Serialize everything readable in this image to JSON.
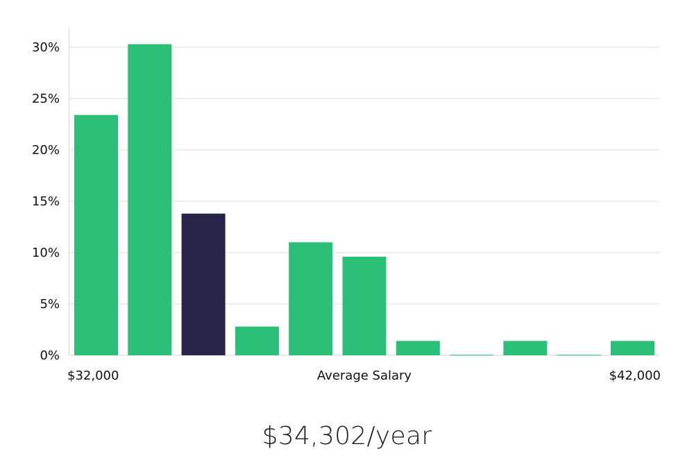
{
  "chart_data": {
    "type": "bar",
    "xlabel": "Average Salary",
    "x_range_labels": [
      "$32,000",
      "$42,000"
    ],
    "y_ticks": [
      "0%",
      "5%",
      "10%",
      "15%",
      "20%",
      "25%",
      "30%"
    ],
    "ylim": [
      0,
      32
    ],
    "grid": true,
    "values": [
      23.4,
      30.3,
      13.8,
      2.8,
      11.0,
      9.6,
      1.4,
      0.05,
      1.4,
      0.05,
      1.4
    ],
    "highlight_index": 2,
    "colors": {
      "bar": "#2bbf77",
      "highlight": "#262447",
      "grid": "#e4e4e4",
      "axis": "#d6d6d6"
    }
  },
  "summary": {
    "salary_text": "$34,302/year"
  }
}
